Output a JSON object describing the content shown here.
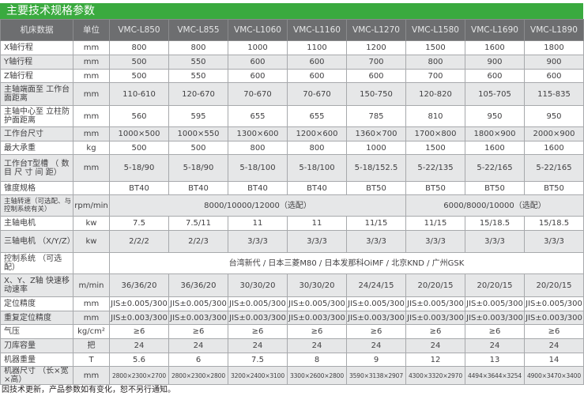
{
  "title": "主要技术规格参数",
  "header": {
    "label": "机床数据",
    "unit": "单位",
    "models": [
      "VMC-L850",
      "VMC-L855",
      "VMC-L1060",
      "VMC-L1160",
      "VMC-L1270",
      "VMC-L1580",
      "VMC-L1690",
      "VMC-L1890"
    ]
  },
  "rows": [
    {
      "label": "X轴行程",
      "unit": "mm",
      "values": [
        "800",
        "800",
        "1000",
        "1100",
        "1200",
        "1500",
        "1600",
        "1800"
      ]
    },
    {
      "label": "Y轴行程",
      "unit": "mm",
      "values": [
        "500",
        "550",
        "600",
        "600",
        "700",
        "800",
        "900",
        "900"
      ]
    },
    {
      "label": "Z轴行程",
      "unit": "mm",
      "values": [
        "500",
        "550",
        "600",
        "600",
        "600",
        "700",
        "600",
        "600"
      ]
    },
    {
      "label": "主轴端面至 工作台面距离",
      "unit": "mm",
      "values": [
        "110-610",
        "120-670",
        "70-670",
        "70-670",
        "150-750",
        "120-820",
        "105-705",
        "115-835"
      ]
    },
    {
      "label": "主轴中心至 立柱防护面距离",
      "unit": "mm",
      "values": [
        "560",
        "595",
        "655",
        "655",
        "785",
        "810",
        "950",
        "950"
      ]
    },
    {
      "label": "工作台尺寸",
      "unit": "mm",
      "values": [
        "1000×500",
        "1000×550",
        "1300×600",
        "1200×600",
        "1360×700",
        "1700×800",
        "1800×900",
        "2000×900"
      ]
    },
    {
      "label": "最大承重",
      "unit": "kg",
      "values": [
        "500",
        "500",
        "800",
        "800",
        "1000",
        "1500",
        "1600",
        "1600"
      ]
    },
    {
      "label": "工作台T型槽 （ 数 目 尺 寸 间 距）",
      "unit": "mm",
      "values": [
        "5-18/90",
        "5-18/90",
        "5-18/100",
        "5-18/100",
        "5-18/152.5",
        "5-22/135",
        "5-22/165",
        "5-22/165"
      ]
    },
    {
      "label": "锥度规格",
      "unit": "",
      "values": [
        "BT40",
        "BT40",
        "BT40",
        "BT40",
        "BT50",
        "BT50",
        "BT50",
        "BT50"
      ]
    }
  ],
  "spindle_speed": {
    "label": "主轴转速（可选配、与控制系统有关）",
    "unit": "rpm/min",
    "value_a": "8000/10000/12000（选配）",
    "value_b": "6000/8000/10000（选配）"
  },
  "rows2": [
    {
      "label": "主轴电机",
      "unit": "kw",
      "values": [
        "7.5",
        "7.5/11",
        "11",
        "11",
        "11/15",
        "11/15",
        "15/18.5",
        "15/18.5"
      ]
    },
    {
      "label": "三轴电机 （X/Y/Z）",
      "unit": "kw",
      "values": [
        "2/2/2",
        "2/2/3",
        "3/3/3",
        "3/3/3",
        "3/3/3",
        "3/3/3",
        "3/3/3",
        "3/3/3"
      ]
    }
  ],
  "control": {
    "label": "控制系统 （可选配）",
    "unit": "",
    "value": "台湾新代 / 日本三菱M80 / 日本发那科OiMF / 北京KND / 广州GSK"
  },
  "rows3": [
    {
      "label": "X、Y、Z轴 快速移动速率",
      "unit": "m/min",
      "values": [
        "36/36/20",
        "36/36/20",
        "30/30/20",
        "30/30/20",
        "24/24/15",
        "20/20/15",
        "20/20/15",
        "20/20/15"
      ]
    },
    {
      "label": "定位精度",
      "unit": "mm",
      "values": [
        "JIS±0.005/300",
        "JIS±0.005/300",
        "JIS±0.005/300",
        "JIS±0.005/300",
        "JIS±0.005/300",
        "JIS±0.005/300",
        "JIS±0.005/300",
        "JIS±0.005/300"
      ]
    },
    {
      "label": "重复定位精度",
      "unit": "mm",
      "values": [
        "JIS±0.003/300",
        "JIS±0.003/300",
        "JIS±0.003/300",
        "JIS±0.003/300",
        "JIS±0.003/300",
        "JIS±0.003/300",
        "JIS±0.003/300",
        "JIS±0.003/300"
      ]
    },
    {
      "label": "气压",
      "unit": "kg/cm²",
      "values": [
        "≥6",
        "≥6",
        "≥6",
        "≥6",
        "≥6",
        "≥6",
        "≥6",
        "≥6"
      ]
    },
    {
      "label": "刀库容量",
      "unit": "把",
      "values": [
        "24",
        "24",
        "24",
        "24",
        "24",
        "24",
        "24",
        "24"
      ]
    },
    {
      "label": "机器重量",
      "unit": "T",
      "values": [
        "5.6",
        "6",
        "7.5",
        "8",
        "9",
        "12",
        "13",
        "14"
      ]
    },
    {
      "label": "机器尺寸 （长×宽×高）",
      "unit": "mm",
      "values": [
        "2800×2300×2700",
        "2800×2300×2800",
        "3200×2400×3100",
        "3300×2600×2800",
        "3590×3138×2907",
        "4300×3320×2970",
        "4494×3644×3254",
        "4900×3470×3400"
      ]
    }
  ],
  "footnote": "因技术更新，产品参数如有变化，恕不另行通知。"
}
